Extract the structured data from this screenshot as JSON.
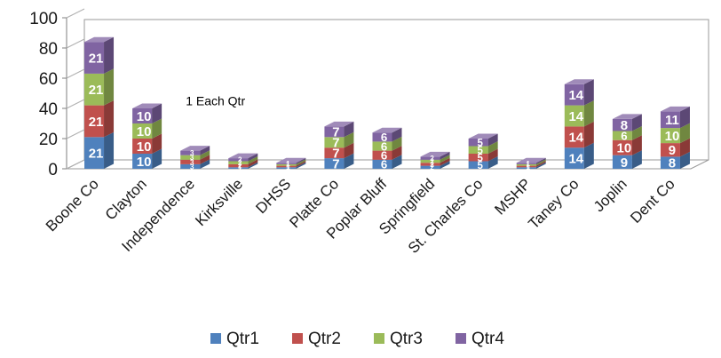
{
  "chart_data": {
    "type": "bar",
    "stacked": true,
    "three_d": true,
    "title": "",
    "xlabel": "",
    "ylabel": "",
    "ylim": [
      0,
      100
    ],
    "yticks": [
      "0",
      "20",
      "40",
      "60",
      "80",
      "100"
    ],
    "grid": false,
    "legend_position": "bottom",
    "categories": [
      "Boone Co",
      "Clayton",
      "Independence",
      "Kirksville",
      "DHSS",
      "Platte Co",
      "Poplar Bluff",
      "Springfield",
      "St. Charles Co",
      "MSHP",
      "Taney Co",
      "Joplin",
      "Dent Co"
    ],
    "series": [
      {
        "name": "Qtr1",
        "color": "#4f81bd",
        "values": [
          21,
          10,
          3,
          1,
          1,
          7,
          6,
          2,
          5,
          1,
          14,
          9,
          8
        ]
      },
      {
        "name": "Qtr2",
        "color": "#c0504d",
        "values": [
          21,
          10,
          3,
          2,
          1,
          7,
          6,
          2,
          5,
          1,
          14,
          10,
          9
        ]
      },
      {
        "name": "Qtr3",
        "color": "#9bbb59",
        "values": [
          21,
          10,
          3,
          2,
          1,
          7,
          6,
          2,
          5,
          1,
          14,
          6,
          10
        ]
      },
      {
        "name": "Qtr4",
        "color": "#8064a2",
        "values": [
          21,
          10,
          3,
          2,
          1,
          7,
          6,
          2,
          5,
          1,
          14,
          8,
          11
        ]
      }
    ],
    "data_labels": [
      [
        "21",
        "21",
        "21",
        "21"
      ],
      [
        "10",
        "10",
        "10",
        "10"
      ],
      [
        "3",
        "3",
        "3",
        "3"
      ],
      [
        "1",
        "2",
        "2",
        "2"
      ],
      [
        "1",
        "1",
        "1",
        "1"
      ],
      [
        "7",
        "7",
        "7",
        "7"
      ],
      [
        "6",
        "6",
        "6",
        "6"
      ],
      [
        "2",
        "2",
        "2",
        "2"
      ],
      [
        "5",
        "5",
        "5",
        "5"
      ],
      [
        "1",
        "1",
        "1",
        "1"
      ],
      [
        "14",
        "14",
        "14",
        "14"
      ],
      [
        "9",
        "10",
        "6",
        "8"
      ],
      [
        "8",
        "9",
        "10",
        "11"
      ]
    ],
    "annotations": [
      {
        "text": "1 Each Qtr",
        "category": "Independence",
        "y": 45
      }
    ]
  }
}
